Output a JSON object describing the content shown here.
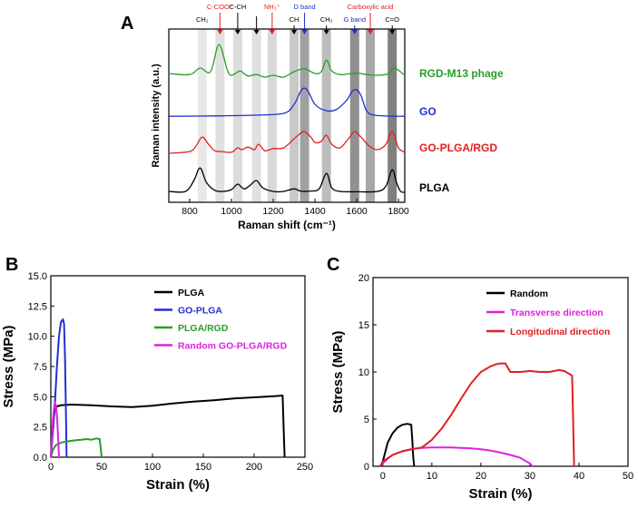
{
  "chart_data": [
    {
      "panel": "A",
      "type": "line",
      "xlabel": "Raman shift (cm⁻¹)",
      "ylabel": "Raman intensity (a.u.)",
      "xlim": [
        700,
        1830
      ],
      "xticks": [
        800,
        1000,
        1200,
        1400,
        1600,
        1800
      ],
      "bands": [
        {
          "label": "CH₂",
          "x": 860,
          "color": "#000000",
          "shade": "#e8e8e8",
          "arrow": false
        },
        {
          "label": "C-COO⁻",
          "x": 945,
          "color": "#e02020",
          "shade": "#e0e0e0",
          "arrow": true
        },
        {
          "label": "C-CH",
          "x": 1030,
          "color": "#000000",
          "shade": "#dcdcdc",
          "arrow": true
        },
        {
          "label": "",
          "x": 1120,
          "color": "#000000",
          "shade": "#e0e0e0",
          "arrow": true
        },
        {
          "label": "NH₃⁺",
          "x": 1195,
          "color": "#e02020",
          "shade": "#d8d8d8",
          "arrow": true
        },
        {
          "label": "CH",
          "x": 1300,
          "color": "#000000",
          "shade": "#c8c8c8",
          "arrow": true
        },
        {
          "label": "D band",
          "x": 1350,
          "color": "#2030d0",
          "shade": "#a0a0a0",
          "arrow": true
        },
        {
          "label": "CH₂",
          "x": 1455,
          "color": "#000000",
          "shade": "#bdbdbd",
          "arrow": true
        },
        {
          "label": "G band",
          "x": 1590,
          "color": "#2030d0",
          "shade": "#909090",
          "arrow": true
        },
        {
          "label": "Carboxylic acid",
          "x": 1665,
          "color": "#e02020",
          "shade": "#a8a8a8",
          "arrow": true
        },
        {
          "label": "C=O",
          "x": 1770,
          "color": "#000000",
          "shade": "#808080",
          "arrow": true
        }
      ],
      "series": [
        {
          "name": "RGD-M13 phage",
          "color": "#2a9d2a",
          "offset": 3.0,
          "x": [
            700,
            800,
            850,
            900,
            940,
            980,
            1000,
            1040,
            1060,
            1080,
            1120,
            1160,
            1200,
            1250,
            1300,
            1350,
            1400,
            1430,
            1455,
            1480,
            1520,
            1560,
            1600,
            1650,
            1700,
            1750,
            1780,
            1830
          ],
          "y": [
            0.15,
            0.12,
            0.3,
            0.2,
            0.95,
            0.25,
            0.1,
            0.22,
            0.15,
            0.08,
            0.12,
            0.05,
            0.1,
            0.05,
            0.2,
            0.28,
            0.15,
            0.2,
            0.52,
            0.22,
            0.12,
            0.14,
            0.16,
            0.12,
            0.1,
            0.14,
            0.3,
            0.1
          ]
        },
        {
          "name": "GO",
          "color": "#2030d0",
          "offset": 2.0,
          "x": [
            700,
            900,
            1100,
            1250,
            1300,
            1330,
            1350,
            1370,
            1400,
            1450,
            1500,
            1550,
            1580,
            1600,
            1620,
            1650,
            1700,
            1830
          ],
          "y": [
            0.02,
            0.03,
            0.05,
            0.1,
            0.35,
            0.7,
            0.8,
            0.68,
            0.35,
            0.18,
            0.2,
            0.45,
            0.72,
            0.75,
            0.6,
            0.15,
            0.04,
            0.02
          ]
        },
        {
          "name": "GO-PLGA/RGD",
          "color": "#e02020",
          "offset": 1.0,
          "x": [
            700,
            800,
            830,
            860,
            890,
            920,
            950,
            1000,
            1030,
            1050,
            1080,
            1110,
            1130,
            1160,
            1200,
            1250,
            1300,
            1330,
            1350,
            1380,
            1400,
            1430,
            1455,
            1480,
            1520,
            1560,
            1590,
            1620,
            1660,
            1700,
            1740,
            1770,
            1800,
            1830
          ],
          "y": [
            0.05,
            0.1,
            0.25,
            0.5,
            0.3,
            0.12,
            0.1,
            0.08,
            0.2,
            0.15,
            0.22,
            0.15,
            0.3,
            0.12,
            0.18,
            0.2,
            0.45,
            0.6,
            0.65,
            0.5,
            0.35,
            0.38,
            0.55,
            0.3,
            0.2,
            0.45,
            0.65,
            0.5,
            0.25,
            0.15,
            0.3,
            0.65,
            0.2,
            0.08
          ]
        },
        {
          "name": "PLGA",
          "color": "#000000",
          "offset": 0.0,
          "x": [
            700,
            780,
            820,
            850,
            880,
            920,
            960,
            1000,
            1030,
            1060,
            1090,
            1120,
            1150,
            1200,
            1250,
            1300,
            1330,
            1380,
            1420,
            1455,
            1480,
            1520,
            1600,
            1700,
            1740,
            1770,
            1790,
            1810,
            1830
          ],
          "y": [
            0.05,
            0.05,
            0.35,
            0.7,
            0.3,
            0.08,
            0.05,
            0.1,
            0.25,
            0.12,
            0.22,
            0.35,
            0.15,
            0.05,
            0.05,
            0.12,
            0.06,
            0.06,
            0.12,
            0.55,
            0.15,
            0.05,
            0.04,
            0.05,
            0.2,
            0.65,
            0.3,
            0.05,
            0.03
          ]
        }
      ]
    },
    {
      "panel": "B",
      "type": "line",
      "xlabel": "Strain (%)",
      "ylabel": "Stress (MPa)",
      "xlim": [
        0,
        250
      ],
      "ylim": [
        0,
        15
      ],
      "xticks": [
        0,
        50,
        100,
        150,
        200,
        250
      ],
      "yticks": [
        0.0,
        2.5,
        5.0,
        7.5,
        10.0,
        12.5,
        15.0
      ],
      "legend": "top-right",
      "series": [
        {
          "name": "PLGA",
          "color": "#000000",
          "x": [
            0,
            2,
            4,
            6,
            10,
            20,
            40,
            60,
            80,
            100,
            120,
            140,
            160,
            180,
            200,
            220,
            228,
            229,
            230
          ],
          "y": [
            0,
            2.5,
            4.0,
            4.2,
            4.3,
            4.35,
            4.3,
            4.2,
            4.15,
            4.25,
            4.45,
            4.6,
            4.7,
            4.85,
            4.95,
            5.05,
            5.1,
            2.5,
            0
          ]
        },
        {
          "name": "GO-PLGA",
          "color": "#2030d0",
          "x": [
            0,
            2,
            4,
            6,
            8,
            10,
            12,
            13,
            14,
            15,
            15.5
          ],
          "y": [
            0,
            2.0,
            4.5,
            7.5,
            10.0,
            11.2,
            11.4,
            11.0,
            8.0,
            3.0,
            0
          ]
        },
        {
          "name": "PLGA/RGD",
          "color": "#2a9d2a",
          "x": [
            0,
            2,
            5,
            10,
            15,
            20,
            25,
            30,
            35,
            40,
            45,
            48,
            49,
            50
          ],
          "y": [
            0,
            0.6,
            1.0,
            1.2,
            1.3,
            1.35,
            1.4,
            1.45,
            1.5,
            1.45,
            1.55,
            1.5,
            0.8,
            0
          ]
        },
        {
          "name": "Random GO-PLGA/RGD",
          "color": "#e020e0",
          "x": [
            0,
            1,
            2,
            3,
            4,
            5,
            6,
            7,
            7.5,
            8
          ],
          "y": [
            0,
            1.5,
            3.0,
            4.0,
            4.5,
            4.3,
            3.5,
            2.0,
            1.0,
            0
          ]
        }
      ]
    },
    {
      "panel": "C",
      "type": "line",
      "xlabel": "Strain (%)",
      "ylabel": "Stress (MPa)",
      "xlim": [
        -2,
        50
      ],
      "ylim": [
        0,
        20
      ],
      "xticks": [
        0,
        10,
        20,
        30,
        40,
        50
      ],
      "yticks": [
        0,
        5,
        10,
        15,
        20
      ],
      "legend": "top-center",
      "series": [
        {
          "name": "Random",
          "color": "#000000",
          "x": [
            -0.5,
            0,
            0.5,
            1,
            2,
            3,
            4,
            5,
            5.8,
            6,
            6.2,
            6.4
          ],
          "y": [
            0,
            0.5,
            1.5,
            2.5,
            3.5,
            4.1,
            4.4,
            4.5,
            4.4,
            3.0,
            1.0,
            0
          ]
        },
        {
          "name": "Transverse direction",
          "color": "#e020e0",
          "x": [
            -0.5,
            0,
            1,
            2,
            4,
            6,
            8,
            10,
            12,
            14,
            16,
            18,
            20,
            22,
            24,
            26,
            28,
            29,
            30,
            30.5
          ],
          "y": [
            0,
            0.3,
            0.8,
            1.2,
            1.6,
            1.85,
            1.95,
            2.0,
            2.0,
            2.0,
            1.95,
            1.9,
            1.8,
            1.65,
            1.45,
            1.2,
            0.9,
            0.6,
            0.3,
            0
          ]
        },
        {
          "name": "Longitudinal direction",
          "color": "#e02020",
          "x": [
            -0.5,
            0,
            2,
            4,
            6,
            8,
            10,
            12,
            14,
            16,
            18,
            20,
            22,
            23,
            24,
            25,
            26,
            28,
            30,
            32,
            34,
            36,
            37,
            38,
            38.6,
            38.8,
            39
          ],
          "y": [
            0,
            0.5,
            1.2,
            1.6,
            1.8,
            2.0,
            2.8,
            4.0,
            5.5,
            7.2,
            8.8,
            10.0,
            10.6,
            10.8,
            10.9,
            10.9,
            10.0,
            10.0,
            10.1,
            10.0,
            10.0,
            10.2,
            10.1,
            9.8,
            9.6,
            5.0,
            0
          ]
        }
      ]
    }
  ]
}
